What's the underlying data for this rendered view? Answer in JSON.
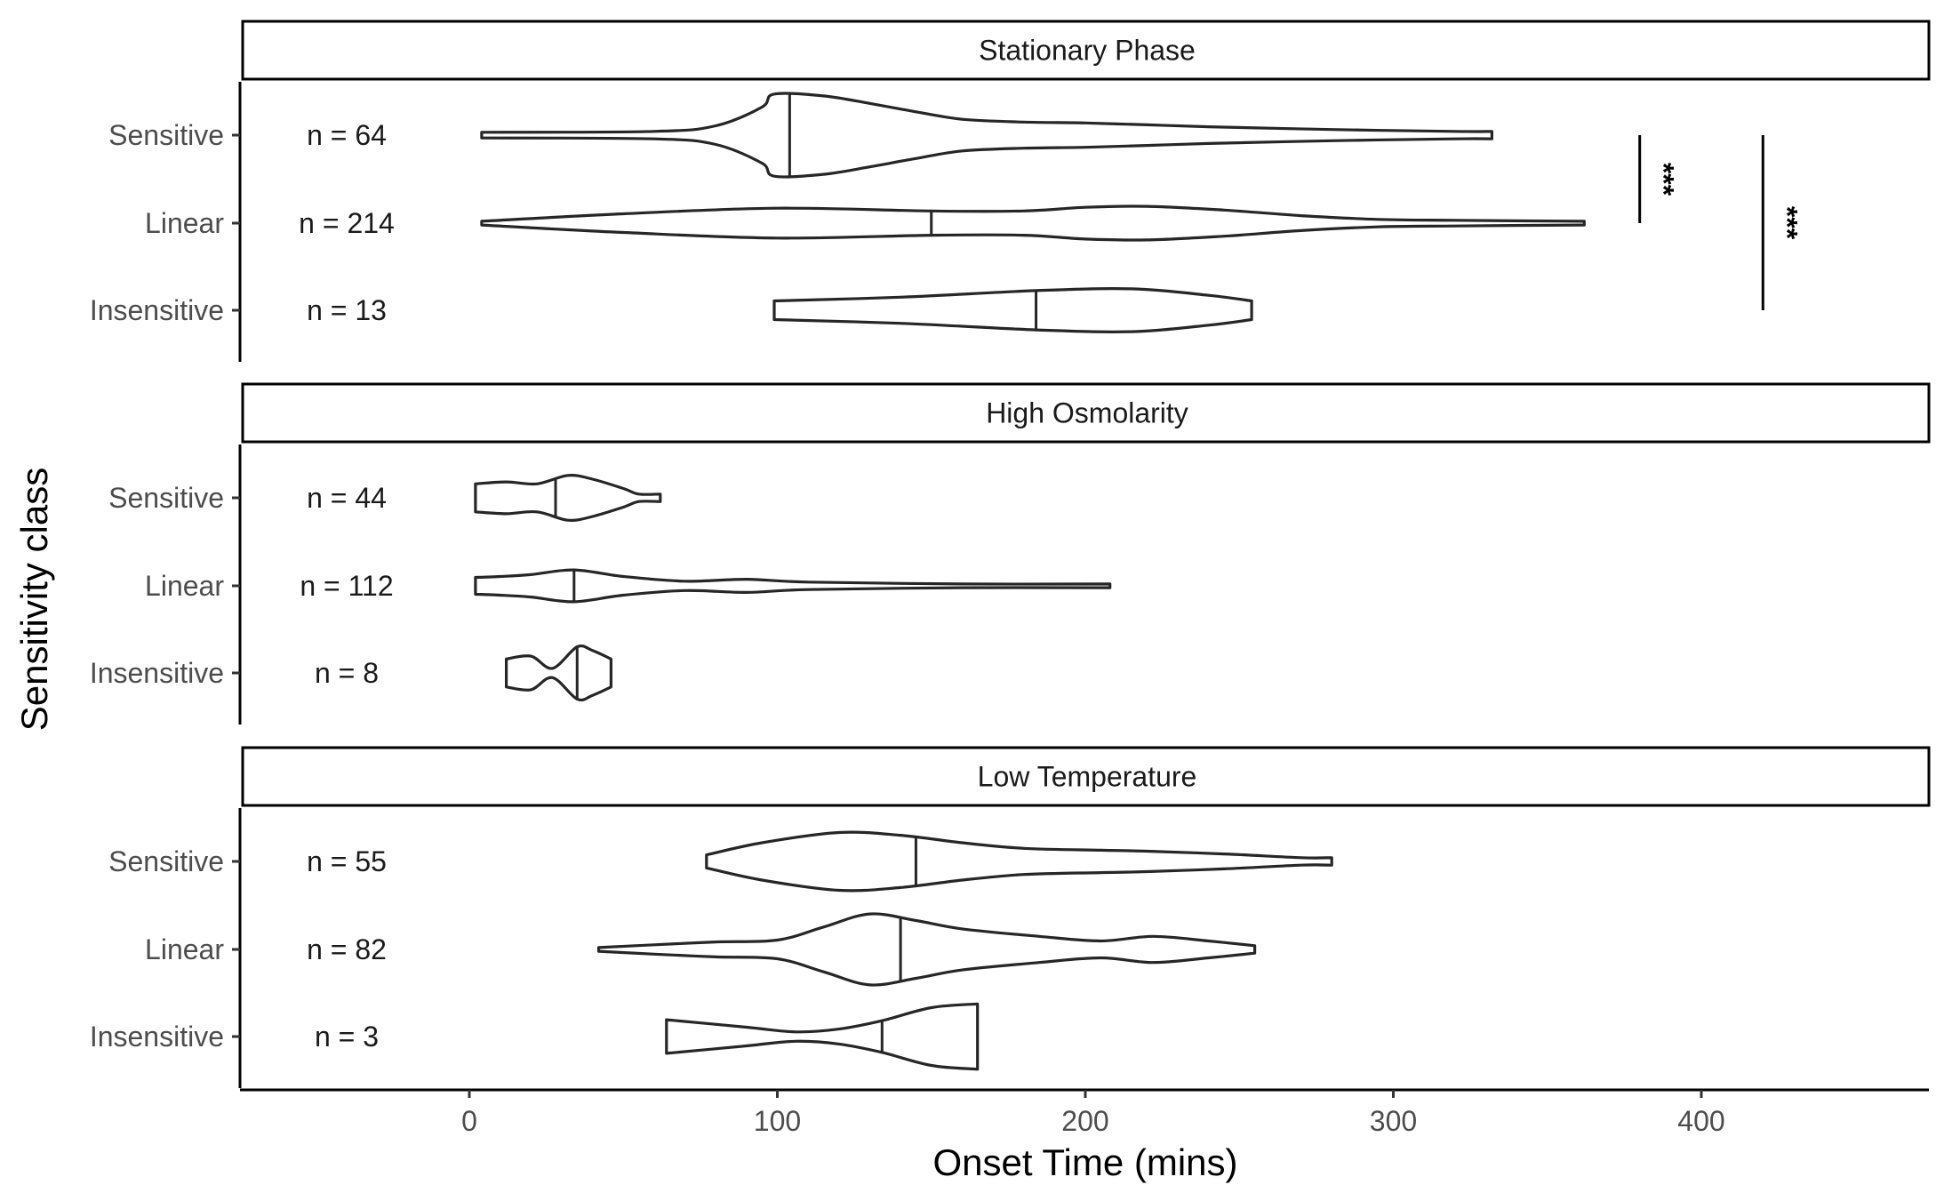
{
  "chart_data": {
    "type": "violin",
    "xlabel": "Onset Time (mins)",
    "ylabel": "Sensitivity class",
    "xlim": [
      -75,
      475
    ],
    "x_ticks": [
      0,
      100,
      200,
      300,
      400
    ],
    "categories": [
      "Sensitive",
      "Linear",
      "Insensitive"
    ],
    "n_prefix": "n = ",
    "panels": [
      {
        "title": "Stationary Phase",
        "groups": [
          {
            "category": "Sensitive",
            "n": 64,
            "median": 104,
            "profile": [
              [
                4,
                3
              ],
              [
                60,
                4
              ],
              [
                80,
                10
              ],
              [
                95,
                30
              ],
              [
                99,
                44
              ],
              [
                115,
                42
              ],
              [
                130,
                34
              ],
              [
                145,
                25
              ],
              [
                160,
                17
              ],
              [
                180,
                14
              ],
              [
                200,
                13
              ],
              [
                220,
                11
              ],
              [
                240,
                9
              ],
              [
                280,
                6
              ],
              [
                320,
                4
              ],
              [
                332,
                4
              ]
            ]
          },
          {
            "category": "Linear",
            "n": 214,
            "median": 150,
            "profile": [
              [
                4,
                2
              ],
              [
                50,
                10
              ],
              [
                100,
                16
              ],
              [
                150,
                13
              ],
              [
                180,
                13
              ],
              [
                200,
                17
              ],
              [
                220,
                18
              ],
              [
                245,
                14
              ],
              [
                270,
                8
              ],
              [
                295,
                4
              ],
              [
                320,
                3
              ],
              [
                362,
                2
              ]
            ]
          },
          {
            "category": "Insensitive",
            "n": 13,
            "median": 184,
            "profile": [
              [
                99,
                10
              ],
              [
                140,
                14
              ],
              [
                184,
                21
              ],
              [
                215,
                23
              ],
              [
                240,
                16
              ],
              [
                254,
                10
              ]
            ]
          }
        ],
        "significance": [
          {
            "from": "Sensitive",
            "to": "Linear",
            "label": "***"
          },
          {
            "from": "Sensitive",
            "to": "Insensitive",
            "label": "***"
          }
        ]
      },
      {
        "title": "High Osmolarity",
        "groups": [
          {
            "category": "Sensitive",
            "n": 44,
            "median": 28,
            "profile": [
              [
                2,
                15
              ],
              [
                12,
                17
              ],
              [
                22,
                15
              ],
              [
                32,
                24
              ],
              [
                40,
                20
              ],
              [
                50,
                10
              ],
              [
                55,
                4
              ],
              [
                62,
                4
              ]
            ]
          },
          {
            "category": "Linear",
            "n": 112,
            "median": 34,
            "profile": [
              [
                2,
                9
              ],
              [
                10,
                10
              ],
              [
                20,
                12
              ],
              [
                34,
                17
              ],
              [
                50,
                10
              ],
              [
                70,
                5
              ],
              [
                90,
                7
              ],
              [
                110,
                4
              ],
              [
                160,
                2
              ],
              [
                208,
                2
              ]
            ]
          },
          {
            "category": "Insensitive",
            "n": 8,
            "median": 35,
            "profile": [
              [
                12,
                15
              ],
              [
                20,
                18
              ],
              [
                27,
                5
              ],
              [
                35,
                28
              ],
              [
                40,
                24
              ],
              [
                46,
                15
              ]
            ]
          }
        ]
      },
      {
        "title": "Low Temperature",
        "groups": [
          {
            "category": "Sensitive",
            "n": 55,
            "median": 145,
            "profile": [
              [
                77,
                7
              ],
              [
                95,
                20
              ],
              [
                120,
                31
              ],
              [
                140,
                28
              ],
              [
                160,
                20
              ],
              [
                180,
                14
              ],
              [
                205,
                12
              ],
              [
                220,
                11
              ],
              [
                245,
                8
              ],
              [
                270,
                4
              ],
              [
                280,
                4
              ]
            ]
          },
          {
            "category": "Linear",
            "n": 82,
            "median": 140,
            "profile": [
              [
                42,
                2
              ],
              [
                60,
                5
              ],
              [
                80,
                8
              ],
              [
                100,
                10
              ],
              [
                115,
                24
              ],
              [
                130,
                38
              ],
              [
                145,
                31
              ],
              [
                160,
                22
              ],
              [
                185,
                14
              ],
              [
                205,
                9
              ],
              [
                222,
                14
              ],
              [
                240,
                9
              ],
              [
                255,
                4
              ]
            ]
          },
          {
            "category": "Insensitive",
            "n": 3,
            "median": 134,
            "profile": [
              [
                64,
                18
              ],
              [
                90,
                10
              ],
              [
                106,
                5
              ],
              [
                120,
                8
              ],
              [
                134,
                17
              ],
              [
                150,
                31
              ],
              [
                165,
                35
              ]
            ]
          }
        ]
      }
    ]
  }
}
